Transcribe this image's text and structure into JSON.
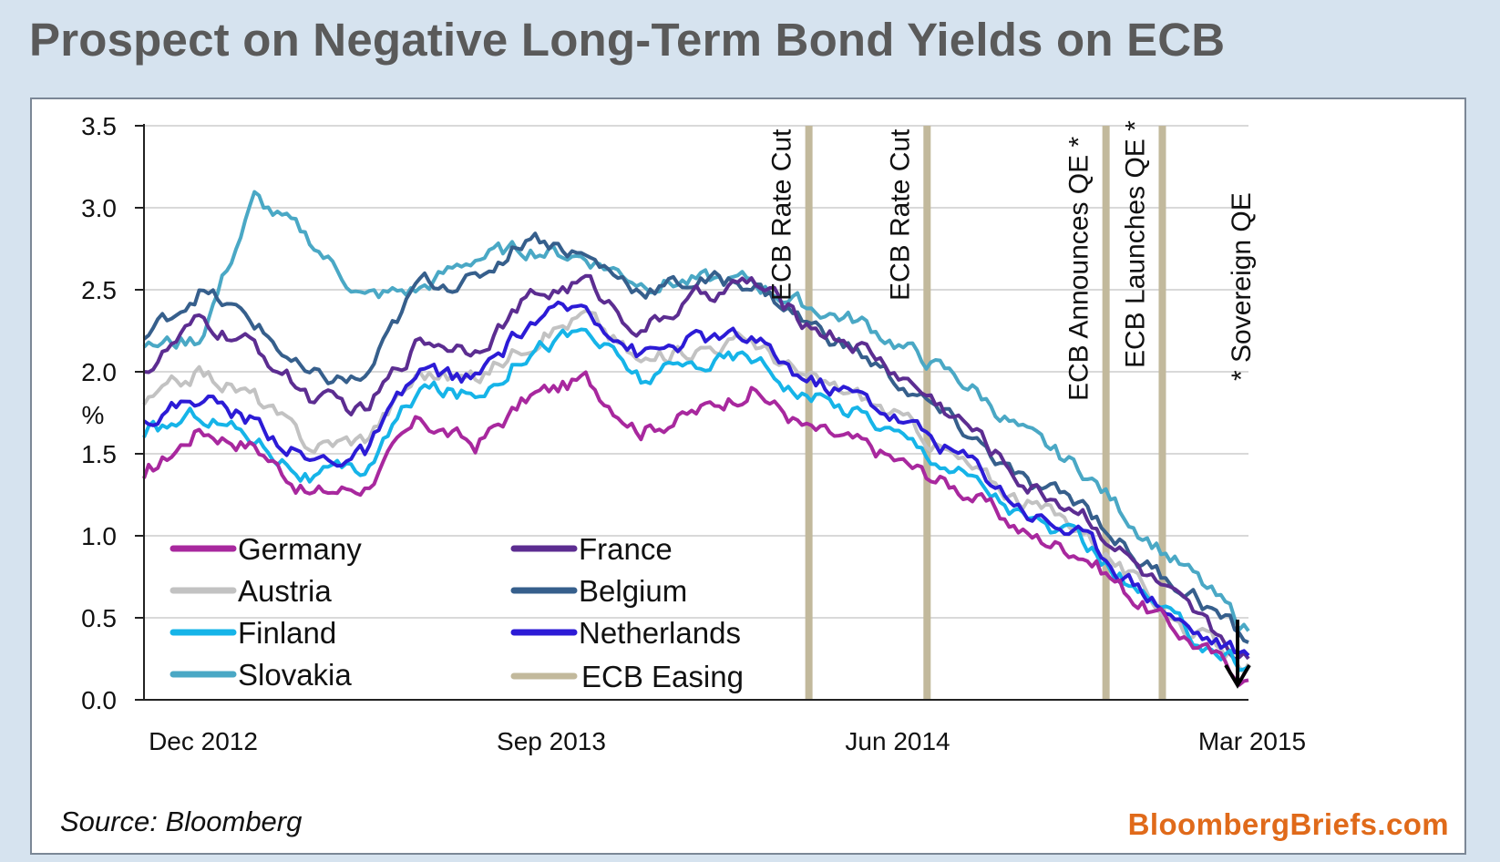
{
  "title": "Prospect on Negative Long-Term Bond Yields on ECB",
  "source": "Source: Bloomberg",
  "brand": "BloombergBriefs.com",
  "chart_data": {
    "type": "line",
    "ylabel": "%",
    "ylim": [
      0,
      3.5
    ],
    "yticks": [
      "0.0",
      "0.5",
      "1.0",
      "1.5",
      "2.0",
      "2.5",
      "3.0",
      "3.5"
    ],
    "xticks": [
      "Dec 2012",
      "Sep 2013",
      "Jun 2014",
      "Mar 2015"
    ],
    "x": [
      0,
      0.05,
      0.1,
      0.15,
      0.2,
      0.25,
      0.3,
      0.35,
      0.4,
      0.45,
      0.5,
      0.55,
      0.6,
      0.65,
      0.7,
      0.75,
      0.8,
      0.85,
      0.9,
      0.95,
      1.0
    ],
    "series": [
      {
        "name": "Germany",
        "color": "#a8289e",
        "values": [
          1.35,
          1.65,
          1.55,
          1.25,
          1.3,
          1.7,
          1.55,
          1.85,
          1.95,
          1.65,
          1.75,
          1.9,
          1.65,
          1.55,
          1.4,
          1.25,
          1.0,
          0.9,
          0.6,
          0.35,
          0.12
        ]
      },
      {
        "name": "France",
        "color": "#5c2d91",
        "values": [
          2.0,
          2.3,
          2.15,
          1.85,
          1.75,
          2.2,
          2.15,
          2.45,
          2.55,
          2.25,
          2.45,
          2.55,
          2.3,
          2.15,
          1.9,
          1.65,
          1.3,
          1.15,
          0.8,
          0.5,
          0.25
        ]
      },
      {
        "name": "Austria",
        "color": "#c2c2c2",
        "values": [
          1.8,
          2.0,
          1.85,
          1.55,
          1.6,
          2.0,
          1.95,
          2.2,
          2.35,
          2.05,
          2.15,
          2.2,
          1.95,
          1.85,
          1.65,
          1.4,
          1.2,
          1.05,
          0.7,
          0.4,
          0.22
        ]
      },
      {
        "name": "Belgium",
        "color": "#365f8c",
        "values": [
          2.2,
          2.5,
          2.3,
          1.95,
          1.95,
          2.55,
          2.55,
          2.85,
          2.7,
          2.5,
          2.55,
          2.55,
          2.3,
          2.1,
          1.85,
          1.6,
          1.3,
          1.2,
          0.85,
          0.65,
          0.35
        ]
      },
      {
        "name": "Finland",
        "color": "#16b4e8",
        "values": [
          1.6,
          1.75,
          1.6,
          1.35,
          1.4,
          1.9,
          1.85,
          2.15,
          2.25,
          1.95,
          2.05,
          2.1,
          1.85,
          1.75,
          1.55,
          1.35,
          1.1,
          0.95,
          0.65,
          0.38,
          0.2
        ]
      },
      {
        "name": "Netherlands",
        "color": "#2c1bd6",
        "values": [
          1.7,
          1.85,
          1.7,
          1.45,
          1.5,
          2.0,
          1.95,
          2.3,
          2.4,
          2.1,
          2.2,
          2.2,
          1.95,
          1.85,
          1.65,
          1.45,
          1.15,
          1.0,
          0.7,
          0.42,
          0.27
        ]
      },
      {
        "name": "Slovakia",
        "color": "#4aa8c5",
        "values": [
          2.15,
          2.2,
          3.05,
          2.8,
          2.45,
          2.5,
          2.7,
          2.75,
          2.7,
          2.55,
          2.55,
          2.55,
          2.4,
          2.3,
          2.1,
          1.9,
          1.6,
          1.4,
          1.05,
          0.75,
          0.42
        ]
      }
    ],
    "easing_label": "ECB Easing",
    "easing_color": "#c2b99c",
    "events": [
      {
        "x": 0.602,
        "label": "ECB Rate Cut"
      },
      {
        "x": 0.709,
        "label": "ECB Rate Cut"
      },
      {
        "x": 0.871,
        "label": "ECB Announces QE *"
      },
      {
        "x": 0.922,
        "label": "ECB Launches QE *"
      }
    ],
    "footnote": "* Sovereign QE"
  }
}
